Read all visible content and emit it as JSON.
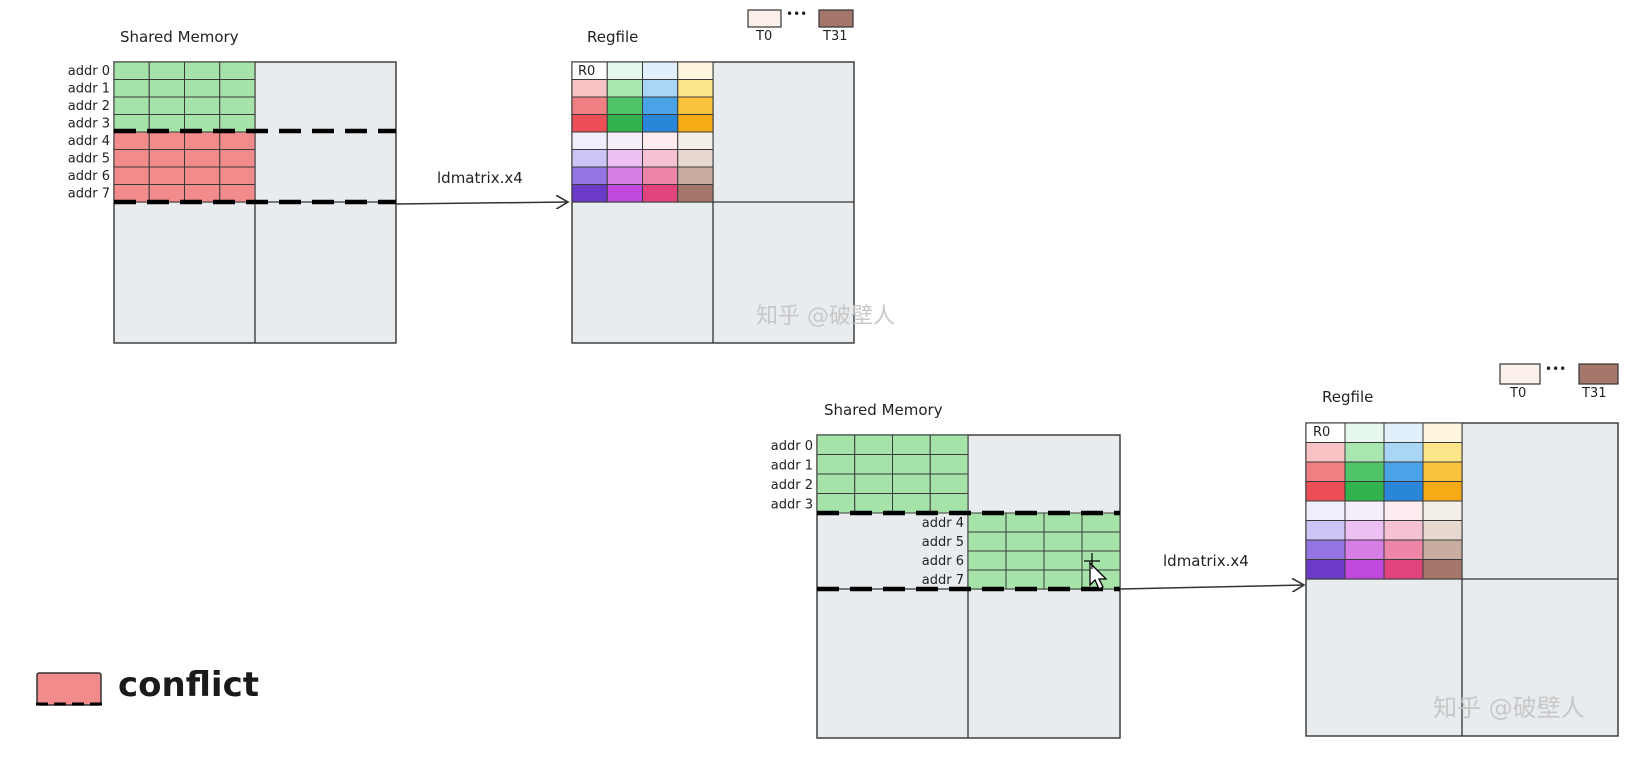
{
  "diagram1": {
    "smem_title": "Shared Memory",
    "regfile_title": "Regfile",
    "addr_rows": [
      "addr  0",
      "addr  1",
      "addr  2",
      "addr  3",
      "addr  4",
      "addr  5",
      "addr  6",
      "addr  7"
    ],
    "arrow_label": "ldmatrix.x4",
    "r0_label": "R0",
    "t0_label": "T0",
    "t31_label": "T31",
    "dots": "•••",
    "watermark": "知乎 @破壁人"
  },
  "diagram2": {
    "smem_title": "Shared Memory",
    "regfile_title": "Regfile",
    "addr_rows_top": [
      "addr  0",
      "addr  1",
      "addr  2",
      "addr  3"
    ],
    "addr_rows_bottom": [
      "addr  4",
      "addr  5",
      "addr  6",
      "addr  7"
    ],
    "arrow_label": "ldmatrix.x4",
    "r0_label": "R0",
    "t0_label": "T0",
    "t31_label": "T31",
    "dots": "•••",
    "watermark": "知乎 @破壁人"
  },
  "legend": {
    "label": "conflict",
    "color": "#f28b8b"
  },
  "colors": {
    "green": "#a6e3a8",
    "red": "#f28b8b",
    "panel": "#e9ecef",
    "t0": "#fbefec",
    "t31": "#a4776a"
  },
  "regfile_colors": [
    [
      "#ffffff",
      "#e6f7ec",
      "#e2f0fb",
      "#fdf5dc"
    ],
    [
      "#f8c3c5",
      "#a9e6b0",
      "#a9d6f5",
      "#fde58a"
    ],
    [
      "#f07f83",
      "#4fc567",
      "#4aa3e6",
      "#fbc33b"
    ],
    [
      "#ec4e57",
      "#33b34e",
      "#2a86d8",
      "#f5ab15"
    ],
    [
      "#efeefc",
      "#f6edfa",
      "#fcecef",
      "#f3efe8"
    ],
    [
      "#cbc4f4",
      "#ecc0f2",
      "#f6c1d2",
      "#e7d8d0"
    ],
    [
      "#9474e2",
      "#d77ee7",
      "#ee86a8",
      "#c8ada0"
    ],
    [
      "#6b3bc7",
      "#c148dc",
      "#e1447d",
      "#a4776a"
    ]
  ]
}
